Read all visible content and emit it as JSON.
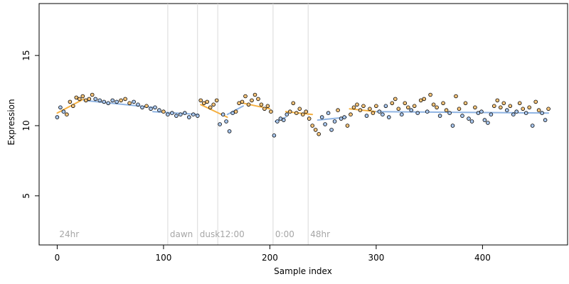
{
  "chart_data": {
    "type": "scatter",
    "xlabel": "Sample index",
    "ylabel": "Expression",
    "xlim": [
      -17,
      480
    ],
    "ylim": [
      1.5,
      18.7
    ],
    "x_ticks": [
      0,
      100,
      200,
      300,
      400
    ],
    "y_ticks": [
      5,
      10,
      15
    ],
    "grid": false,
    "colors": {
      "line_orange": "#f5b041",
      "line_blue": "#8fb4e3",
      "point_orange": "#f6c47a",
      "point_blue": "#a9c7ee",
      "point_stroke": "#000000",
      "region_line": "#d9d9d9",
      "region_text": "#a6a6a6"
    },
    "regions": [
      {
        "label": "24hr",
        "start": 0
      },
      {
        "label": "dawn",
        "start": 104
      },
      {
        "label": "dusk",
        "start": 132
      },
      {
        "label": "12:00",
        "start": 151
      },
      {
        "label": "0:00",
        "start": 203
      },
      {
        "label": "48hr",
        "start": 236
      }
    ],
    "series_segments": [
      {
        "color": "orange",
        "x": [
          0,
          25
        ],
        "y": [
          10.9,
          11.9
        ]
      },
      {
        "color": "blue",
        "x": [
          25,
          90
        ],
        "y": [
          11.8,
          11.3
        ]
      },
      {
        "color": "blue",
        "x": [
          90,
          133
        ],
        "y": [
          11.0,
          10.8
        ]
      },
      {
        "color": "orange",
        "x": [
          135,
          160
        ],
        "y": [
          11.5,
          10.6
        ]
      },
      {
        "color": "blue",
        "x": [
          160,
          175
        ],
        "y": [
          10.8,
          11.4
        ]
      },
      {
        "color": "orange",
        "x": [
          175,
          200
        ],
        "y": [
          11.6,
          11.2
        ]
      },
      {
        "color": "blue",
        "x": [
          205,
          215
        ],
        "y": [
          10.3,
          10.6
        ]
      },
      {
        "color": "orange",
        "x": [
          215,
          240
        ],
        "y": [
          11.0,
          10.8
        ]
      },
      {
        "color": "blue",
        "x": [
          245,
          272
        ],
        "y": [
          10.4,
          10.6
        ]
      },
      {
        "color": "orange",
        "x": [
          275,
          300
        ],
        "y": [
          11.2,
          11.0
        ]
      },
      {
        "color": "blue",
        "x": [
          300,
          462
        ],
        "y": [
          11.0,
          10.9
        ]
      }
    ],
    "points": [
      {
        "x": 0,
        "y": 10.6,
        "c": "blue"
      },
      {
        "x": 3,
        "y": 11.3,
        "c": "blue"
      },
      {
        "x": 6,
        "y": 11.0,
        "c": "blue"
      },
      {
        "x": 9,
        "y": 10.8,
        "c": "orange"
      },
      {
        "x": 12,
        "y": 11.7,
        "c": "orange"
      },
      {
        "x": 15,
        "y": 11.4,
        "c": "orange"
      },
      {
        "x": 18,
        "y": 12.0,
        "c": "orange"
      },
      {
        "x": 21,
        "y": 11.9,
        "c": "orange"
      },
      {
        "x": 24,
        "y": 12.1,
        "c": "orange"
      },
      {
        "x": 27,
        "y": 11.8,
        "c": "orange"
      },
      {
        "x": 30,
        "y": 11.9,
        "c": "orange"
      },
      {
        "x": 33,
        "y": 12.2,
        "c": "orange"
      },
      {
        "x": 36,
        "y": 11.9,
        "c": "blue"
      },
      {
        "x": 40,
        "y": 11.8,
        "c": "blue"
      },
      {
        "x": 44,
        "y": 11.7,
        "c": "blue"
      },
      {
        "x": 48,
        "y": 11.6,
        "c": "blue"
      },
      {
        "x": 52,
        "y": 11.8,
        "c": "blue"
      },
      {
        "x": 56,
        "y": 11.7,
        "c": "blue"
      },
      {
        "x": 60,
        "y": 11.8,
        "c": "orange"
      },
      {
        "x": 64,
        "y": 11.9,
        "c": "orange"
      },
      {
        "x": 68,
        "y": 11.6,
        "c": "orange"
      },
      {
        "x": 72,
        "y": 11.7,
        "c": "blue"
      },
      {
        "x": 76,
        "y": 11.5,
        "c": "blue"
      },
      {
        "x": 80,
        "y": 11.3,
        "c": "blue"
      },
      {
        "x": 84,
        "y": 11.4,
        "c": "orange"
      },
      {
        "x": 88,
        "y": 11.2,
        "c": "blue"
      },
      {
        "x": 92,
        "y": 11.3,
        "c": "blue"
      },
      {
        "x": 96,
        "y": 11.1,
        "c": "blue"
      },
      {
        "x": 100,
        "y": 11.0,
        "c": "orange"
      },
      {
        "x": 104,
        "y": 10.8,
        "c": "blue"
      },
      {
        "x": 108,
        "y": 10.9,
        "c": "blue"
      },
      {
        "x": 112,
        "y": 10.7,
        "c": "blue"
      },
      {
        "x": 116,
        "y": 10.8,
        "c": "blue"
      },
      {
        "x": 120,
        "y": 10.9,
        "c": "blue"
      },
      {
        "x": 124,
        "y": 10.6,
        "c": "blue"
      },
      {
        "x": 128,
        "y": 10.8,
        "c": "blue"
      },
      {
        "x": 132,
        "y": 10.7,
        "c": "blue"
      },
      {
        "x": 135,
        "y": 11.8,
        "c": "orange"
      },
      {
        "x": 138,
        "y": 11.6,
        "c": "orange"
      },
      {
        "x": 141,
        "y": 11.7,
        "c": "orange"
      },
      {
        "x": 144,
        "y": 11.3,
        "c": "orange"
      },
      {
        "x": 147,
        "y": 11.5,
        "c": "orange"
      },
      {
        "x": 150,
        "y": 11.8,
        "c": "orange"
      },
      {
        "x": 153,
        "y": 10.1,
        "c": "blue"
      },
      {
        "x": 156,
        "y": 10.8,
        "c": "blue"
      },
      {
        "x": 159,
        "y": 10.3,
        "c": "blue"
      },
      {
        "x": 162,
        "y": 9.6,
        "c": "blue"
      },
      {
        "x": 165,
        "y": 10.9,
        "c": "blue"
      },
      {
        "x": 168,
        "y": 11.0,
        "c": "orange"
      },
      {
        "x": 171,
        "y": 11.6,
        "c": "orange"
      },
      {
        "x": 174,
        "y": 11.7,
        "c": "orange"
      },
      {
        "x": 177,
        "y": 12.1,
        "c": "orange"
      },
      {
        "x": 180,
        "y": 11.5,
        "c": "orange"
      },
      {
        "x": 183,
        "y": 11.8,
        "c": "orange"
      },
      {
        "x": 186,
        "y": 12.2,
        "c": "orange"
      },
      {
        "x": 189,
        "y": 11.9,
        "c": "orange"
      },
      {
        "x": 192,
        "y": 11.5,
        "c": "orange"
      },
      {
        "x": 195,
        "y": 11.2,
        "c": "orange"
      },
      {
        "x": 198,
        "y": 11.4,
        "c": "orange"
      },
      {
        "x": 201,
        "y": 11.0,
        "c": "orange"
      },
      {
        "x": 204,
        "y": 9.3,
        "c": "blue"
      },
      {
        "x": 207,
        "y": 10.3,
        "c": "blue"
      },
      {
        "x": 210,
        "y": 10.5,
        "c": "blue"
      },
      {
        "x": 213,
        "y": 10.4,
        "c": "blue"
      },
      {
        "x": 216,
        "y": 10.8,
        "c": "blue"
      },
      {
        "x": 219,
        "y": 11.0,
        "c": "orange"
      },
      {
        "x": 222,
        "y": 11.6,
        "c": "orange"
      },
      {
        "x": 225,
        "y": 10.9,
        "c": "orange"
      },
      {
        "x": 228,
        "y": 11.2,
        "c": "orange"
      },
      {
        "x": 231,
        "y": 10.8,
        "c": "orange"
      },
      {
        "x": 234,
        "y": 11.0,
        "c": "orange"
      },
      {
        "x": 237,
        "y": 10.5,
        "c": "orange"
      },
      {
        "x": 240,
        "y": 10.0,
        "c": "orange"
      },
      {
        "x": 243,
        "y": 9.7,
        "c": "orange"
      },
      {
        "x": 246,
        "y": 9.4,
        "c": "orange"
      },
      {
        "x": 249,
        "y": 10.6,
        "c": "blue"
      },
      {
        "x": 252,
        "y": 10.1,
        "c": "blue"
      },
      {
        "x": 255,
        "y": 10.9,
        "c": "blue"
      },
      {
        "x": 258,
        "y": 9.7,
        "c": "blue"
      },
      {
        "x": 261,
        "y": 10.3,
        "c": "blue"
      },
      {
        "x": 264,
        "y": 11.1,
        "c": "orange"
      },
      {
        "x": 267,
        "y": 10.5,
        "c": "blue"
      },
      {
        "x": 270,
        "y": 10.6,
        "c": "blue"
      },
      {
        "x": 273,
        "y": 10.0,
        "c": "orange"
      },
      {
        "x": 276,
        "y": 10.8,
        "c": "orange"
      },
      {
        "x": 279,
        "y": 11.3,
        "c": "orange"
      },
      {
        "x": 282,
        "y": 11.5,
        "c": "orange"
      },
      {
        "x": 285,
        "y": 11.1,
        "c": "orange"
      },
      {
        "x": 288,
        "y": 11.4,
        "c": "orange"
      },
      {
        "x": 291,
        "y": 10.7,
        "c": "blue"
      },
      {
        "x": 294,
        "y": 11.2,
        "c": "orange"
      },
      {
        "x": 297,
        "y": 10.9,
        "c": "orange"
      },
      {
        "x": 300,
        "y": 11.4,
        "c": "orange"
      },
      {
        "x": 303,
        "y": 11.0,
        "c": "blue"
      },
      {
        "x": 306,
        "y": 10.8,
        "c": "blue"
      },
      {
        "x": 309,
        "y": 11.4,
        "c": "blue"
      },
      {
        "x": 312,
        "y": 10.6,
        "c": "blue"
      },
      {
        "x": 315,
        "y": 11.6,
        "c": "orange"
      },
      {
        "x": 318,
        "y": 11.9,
        "c": "orange"
      },
      {
        "x": 321,
        "y": 11.2,
        "c": "orange"
      },
      {
        "x": 324,
        "y": 10.8,
        "c": "blue"
      },
      {
        "x": 327,
        "y": 11.6,
        "c": "orange"
      },
      {
        "x": 330,
        "y": 11.3,
        "c": "orange"
      },
      {
        "x": 333,
        "y": 11.1,
        "c": "blue"
      },
      {
        "x": 336,
        "y": 11.4,
        "c": "orange"
      },
      {
        "x": 339,
        "y": 10.9,
        "c": "blue"
      },
      {
        "x": 342,
        "y": 11.8,
        "c": "orange"
      },
      {
        "x": 345,
        "y": 11.9,
        "c": "orange"
      },
      {
        "x": 348,
        "y": 11.0,
        "c": "blue"
      },
      {
        "x": 351,
        "y": 12.2,
        "c": "orange"
      },
      {
        "x": 354,
        "y": 11.5,
        "c": "orange"
      },
      {
        "x": 357,
        "y": 11.3,
        "c": "orange"
      },
      {
        "x": 360,
        "y": 10.7,
        "c": "blue"
      },
      {
        "x": 363,
        "y": 11.6,
        "c": "orange"
      },
      {
        "x": 366,
        "y": 11.1,
        "c": "orange"
      },
      {
        "x": 369,
        "y": 10.9,
        "c": "blue"
      },
      {
        "x": 372,
        "y": 10.0,
        "c": "blue"
      },
      {
        "x": 375,
        "y": 12.1,
        "c": "orange"
      },
      {
        "x": 378,
        "y": 11.2,
        "c": "orange"
      },
      {
        "x": 381,
        "y": 10.7,
        "c": "blue"
      },
      {
        "x": 384,
        "y": 11.6,
        "c": "orange"
      },
      {
        "x": 387,
        "y": 10.5,
        "c": "blue"
      },
      {
        "x": 390,
        "y": 10.3,
        "c": "blue"
      },
      {
        "x": 393,
        "y": 11.3,
        "c": "orange"
      },
      {
        "x": 396,
        "y": 10.9,
        "c": "blue"
      },
      {
        "x": 399,
        "y": 11.0,
        "c": "blue"
      },
      {
        "x": 402,
        "y": 10.4,
        "c": "blue"
      },
      {
        "x": 405,
        "y": 10.2,
        "c": "blue"
      },
      {
        "x": 408,
        "y": 10.8,
        "c": "blue"
      },
      {
        "x": 411,
        "y": 11.4,
        "c": "orange"
      },
      {
        "x": 414,
        "y": 11.8,
        "c": "orange"
      },
      {
        "x": 417,
        "y": 11.3,
        "c": "orange"
      },
      {
        "x": 420,
        "y": 11.6,
        "c": "orange"
      },
      {
        "x": 423,
        "y": 11.1,
        "c": "blue"
      },
      {
        "x": 426,
        "y": 11.4,
        "c": "orange"
      },
      {
        "x": 429,
        "y": 10.8,
        "c": "blue"
      },
      {
        "x": 432,
        "y": 11.0,
        "c": "blue"
      },
      {
        "x": 435,
        "y": 11.6,
        "c": "orange"
      },
      {
        "x": 438,
        "y": 11.2,
        "c": "orange"
      },
      {
        "x": 441,
        "y": 10.9,
        "c": "blue"
      },
      {
        "x": 444,
        "y": 11.3,
        "c": "orange"
      },
      {
        "x": 447,
        "y": 10.0,
        "c": "blue"
      },
      {
        "x": 450,
        "y": 11.7,
        "c": "orange"
      },
      {
        "x": 453,
        "y": 11.1,
        "c": "orange"
      },
      {
        "x": 456,
        "y": 10.9,
        "c": "blue"
      },
      {
        "x": 459,
        "y": 10.4,
        "c": "blue"
      },
      {
        "x": 462,
        "y": 11.2,
        "c": "orange"
      }
    ]
  }
}
